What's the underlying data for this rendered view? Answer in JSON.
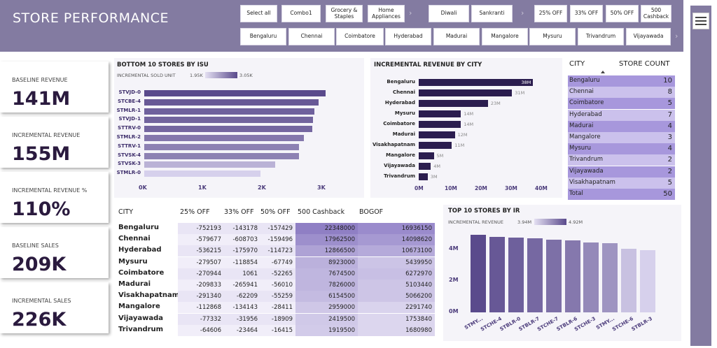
{
  "header": {
    "title": "STORE PERFORMANCE"
  },
  "slicers": {
    "row1": [
      "Select all",
      "Combo1",
      "Grocery & Staples",
      "Home Appliances",
      "Diwali",
      "Sankranti",
      "25% OFF",
      "33% OFF",
      "50% OFF",
      "500 Cashback"
    ],
    "row2": [
      "Bengaluru",
      "Chennai",
      "Coimbatore",
      "Hyderabad",
      "Madurai",
      "Mangalore",
      "Mysuru",
      "Trivandrum",
      "Vijayawada"
    ]
  },
  "kpis": [
    {
      "label": "BASELINE REVENUE",
      "value": "141M"
    },
    {
      "label": "INCREMENTAL REVENUE",
      "value": "155M"
    },
    {
      "label": "INCREMENTAL REVENUE %",
      "value": "110%"
    },
    {
      "label": "BASELINE SALES",
      "value": "209K"
    },
    {
      "label": "INCREMENTAL SALES",
      "value": "226K"
    }
  ],
  "colors": {
    "header": "#837ba1",
    "dark_bar": "#5a4a8c",
    "light_bar": "#d6d0ec"
  },
  "chart_data": [
    {
      "type": "bar",
      "orientation": "horizontal",
      "title": "BOTTOM 10 STORES BY ISU",
      "legend": {
        "label": "INCREMENTAL SOLD UNIT",
        "min": "1.95K",
        "max": "3.05K"
      },
      "categories": [
        "STVJD-0",
        "STCBE-4",
        "STMLR-1",
        "STVJD-1",
        "STTRV-0",
        "STMLR-2",
        "STTRV-1",
        "STVSK-4",
        "STVSK-3",
        "STMLR-0"
      ],
      "values": [
        3050,
        2930,
        2860,
        2840,
        2820,
        2680,
        2600,
        2600,
        2200,
        1950
      ],
      "xticks": [
        "0K",
        "1K",
        "2K",
        "3K"
      ],
      "xlim": [
        0,
        3300
      ]
    },
    {
      "type": "bar",
      "orientation": "horizontal",
      "title": "INCREMENTAL REVENUE BY CITY",
      "categories": [
        "Bengaluru",
        "Chennai",
        "Hyderabad",
        "Mysuru",
        "Coimbatore",
        "Madurai",
        "Visakhapatnam",
        "Mangalore",
        "Vijayawada",
        "Trivandrum"
      ],
      "values": [
        38,
        31,
        23,
        14,
        14,
        12,
        11,
        5,
        4,
        3
      ],
      "value_labels": [
        "38M",
        "31M",
        "23M",
        "14M",
        "14M",
        "12M",
        "11M",
        "5M",
        "4M",
        "3M"
      ],
      "xticks": [
        "0M",
        "10M",
        "20M",
        "30M",
        "40M"
      ],
      "xlim": [
        0,
        40
      ]
    },
    {
      "type": "bar",
      "title": "TOP 10 STORES BY IR",
      "legend": {
        "label": "INCREMENTAL REVENUE",
        "min": "3.94M",
        "max": "4.92M"
      },
      "categories": [
        "STMY...",
        "STCHE-4",
        "STBLR-0",
        "STBLR-7",
        "STCHE-7",
        "STBLR-6",
        "STCHE-3",
        "STMY...",
        "STCHE-6",
        "STBLR-3"
      ],
      "values": [
        4.92,
        4.82,
        4.76,
        4.7,
        4.64,
        4.58,
        4.46,
        4.38,
        4.05,
        3.94
      ],
      "xtick_labels_shown": [
        "STMY...",
        "STCHE-4",
        "STBLR-0",
        "STBLR-7",
        "STCHE-7",
        "STBLR-6",
        "STCHE-3",
        "STMY...",
        "STCHE-6",
        "STBLR-3"
      ],
      "yticks": [
        "0M",
        "2M",
        "4M"
      ],
      "ylim": [
        0,
        5.2
      ]
    }
  ],
  "store_count": {
    "headers": [
      "CITY",
      "STORE COUNT"
    ],
    "rows": [
      {
        "city": "Bengaluru",
        "count": "10"
      },
      {
        "city": "Chennai",
        "count": "8"
      },
      {
        "city": "Coimbatore",
        "count": "5"
      },
      {
        "city": "Hyderabad",
        "count": "7"
      },
      {
        "city": "Madurai",
        "count": "4"
      },
      {
        "city": "Mangalore",
        "count": "3"
      },
      {
        "city": "Mysuru",
        "count": "4"
      },
      {
        "city": "Trivandrum",
        "count": "2"
      },
      {
        "city": "Vijayawada",
        "count": "2"
      },
      {
        "city": "Visakhapatnam",
        "count": "5"
      }
    ],
    "total_label": "Total",
    "total": "50"
  },
  "matrix": {
    "headers": [
      "CITY",
      "25% OFF",
      "33% OFF",
      "50% OFF",
      "500 Cashback",
      "BOGOF"
    ],
    "rows": [
      {
        "city": "Bengaluru",
        "values": [
          "-752193",
          "-143178",
          "-157429",
          "22348000",
          "16936150"
        ]
      },
      {
        "city": "Chennai",
        "values": [
          "-579677",
          "-608703",
          "-159496",
          "17962500",
          "14098620"
        ]
      },
      {
        "city": "Hyderabad",
        "values": [
          "-536215",
          "-175970",
          "-114723",
          "12866500",
          "10673100"
        ]
      },
      {
        "city": "Mysuru",
        "values": [
          "-279507",
          "-118854",
          "-67749",
          "8923000",
          "5439950"
        ]
      },
      {
        "city": "Coimbatore",
        "values": [
          "-270944",
          "1061",
          "-52265",
          "7674500",
          "6272970"
        ]
      },
      {
        "city": "Madurai",
        "values": [
          "-209833",
          "-265941",
          "-56010",
          "7826000",
          "5103440"
        ]
      },
      {
        "city": "Visakhapatnam",
        "values": [
          "-291340",
          "-62209",
          "-55259",
          "6154500",
          "5066200"
        ]
      },
      {
        "city": "Mangalore",
        "values": [
          "-112868",
          "-134143",
          "-28411",
          "2959000",
          "2291740"
        ]
      },
      {
        "city": "Vijayawada",
        "values": [
          "-77332",
          "-31956",
          "-18909",
          "2419500",
          "1753840"
        ]
      },
      {
        "city": "Trivandrum",
        "values": [
          "-64606",
          "-23464",
          "-16415",
          "1919500",
          "1680980"
        ]
      }
    ]
  }
}
